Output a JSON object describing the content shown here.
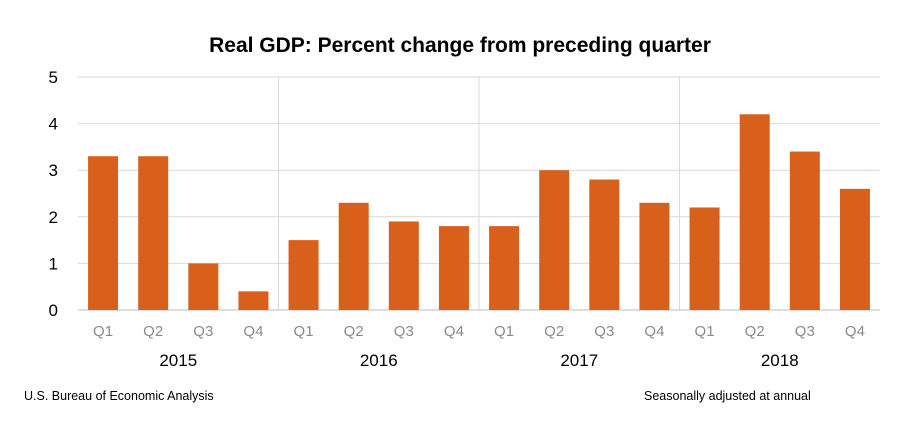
{
  "chart_data": {
    "type": "bar",
    "title": "Real GDP:  Percent change from preceding quarter",
    "categories": [
      "Q1",
      "Q2",
      "Q3",
      "Q4",
      "Q1",
      "Q2",
      "Q3",
      "Q4",
      "Q1",
      "Q2",
      "Q3",
      "Q4",
      "Q1",
      "Q2",
      "Q3",
      "Q4"
    ],
    "groups": [
      {
        "label": "2015",
        "size": 4
      },
      {
        "label": "2016",
        "size": 4
      },
      {
        "label": "2017",
        "size": 4
      },
      {
        "label": "2018",
        "size": 4
      }
    ],
    "values": [
      3.3,
      3.3,
      1.0,
      0.4,
      1.5,
      2.3,
      1.9,
      1.8,
      1.8,
      3.0,
      2.8,
      2.3,
      2.2,
      4.2,
      3.4,
      2.6
    ],
    "ylim": [
      0,
      5
    ],
    "yticks": [
      "0",
      "1",
      "2",
      "3",
      "4",
      "5"
    ],
    "xlabel": "",
    "ylabel": "",
    "grid": true,
    "bar_color": "#d8601b",
    "grid_color": "#d9d9d9"
  },
  "footer": {
    "source": "U.S. Bureau of Economic Analysis",
    "note": "Seasonally adjusted at annual"
  }
}
